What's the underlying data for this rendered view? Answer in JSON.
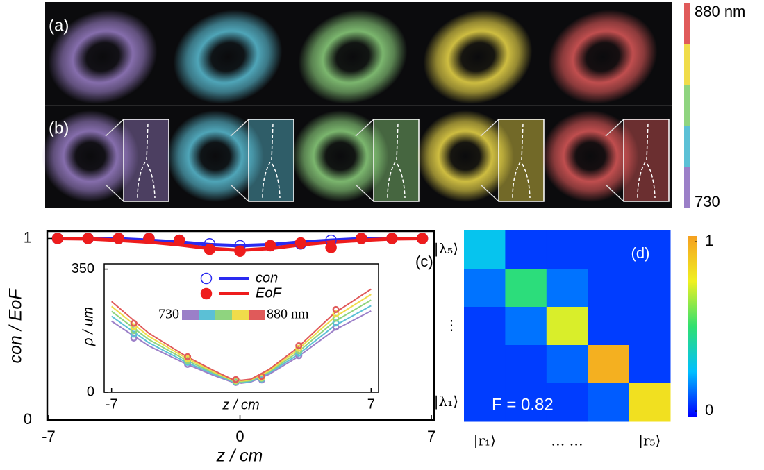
{
  "panels": {
    "a_label": "(a)",
    "b_label": "(b)"
  },
  "wavelength_bar": {
    "top_label": "880 nm",
    "bottom_label": "730",
    "colors": [
      "#e05a5a",
      "#f0dc4a",
      "#8fd47f",
      "#5bc0d6",
      "#9b7fc8"
    ]
  },
  "chart_data": [
    {
      "type": "line",
      "panel_label": "(c)",
      "x_label": "z / cm",
      "y_label": "con / EoF",
      "x": [
        -6.67,
        -5.56,
        -4.44,
        -3.33,
        -2.22,
        -1.11,
        0,
        1.11,
        2.22,
        3.33,
        4.44,
        5.56,
        6.67
      ],
      "xlim": [
        -7.05,
        7.1
      ],
      "ylim": [
        0,
        1.04
      ],
      "xticks": [
        -7,
        0,
        7
      ],
      "yticks": [
        0,
        1
      ],
      "series": [
        {
          "name": "con",
          "color": "#2a2af0",
          "marker": "open-circle",
          "values": [
            1,
            1,
            1,
            1,
            0.99,
            0.97,
            0.96,
            0.96,
            0.97,
            0.99,
            1,
            1,
            1
          ],
          "fit": [
            1,
            1,
            0.998,
            0.99,
            0.98,
            0.966,
            0.96,
            0.966,
            0.98,
            0.99,
            0.998,
            1,
            1
          ]
        },
        {
          "name": "EoF",
          "color": "#ee1c1c",
          "marker": "filled-circle",
          "values": [
            1,
            1,
            1,
            1,
            0.99,
            0.94,
            0.93,
            0.96,
            0.975,
            0.95,
            1,
            1,
            1
          ],
          "fit": [
            1,
            0.998,
            0.99,
            0.98,
            0.965,
            0.945,
            0.935,
            0.945,
            0.965,
            0.98,
            0.99,
            0.998,
            1
          ]
        }
      ]
    },
    {
      "type": "line",
      "x_label": "z / cm",
      "y_label": "ρ / um",
      "xlim": [
        -7.4,
        7.4
      ],
      "ylim": [
        0,
        365
      ],
      "xticks": [
        -7,
        7
      ],
      "yticks": [
        0,
        350
      ],
      "x": [
        -5.8,
        -2.9,
        -0.3,
        1.1,
        3.1,
        5.1
      ],
      "fit_x": [
        -7,
        -5,
        -3,
        -1.5,
        -0.5,
        0,
        0.5,
        1.5,
        3,
        5,
        7
      ],
      "colorbar": {
        "low_label": "730",
        "high_label": "880 nm"
      },
      "series": [
        {
          "color": "#9b7fc8",
          "values": [
            154,
            79,
            28,
            35,
            104,
            185
          ],
          "fit": [
            202,
            132,
            81,
            48,
            29,
            26,
            29,
            51,
            99,
            176,
            231
          ]
        },
        {
          "color": "#5bc0d6",
          "values": [
            165,
            85,
            30,
            38,
            111,
            197
          ],
          "fit": [
            216,
            141,
            86,
            52,
            31,
            28,
            31,
            55,
            105,
            188,
            246
          ]
        },
        {
          "color": "#8fd47f",
          "values": [
            175,
            90,
            32,
            40,
            118,
            210
          ],
          "fit": [
            230,
            150,
            92,
            55,
            33,
            30,
            33,
            58,
            112,
            200,
            262
          ]
        },
        {
          "color": "#f0dc4a",
          "values": [
            186,
            95,
            34,
            42,
            125,
            223
          ],
          "fit": [
            244,
            159,
            98,
            58,
            35,
            32,
            35,
            61,
            119,
            212,
            278
          ]
        },
        {
          "color": "#e05a5a",
          "values": [
            196,
            101,
            36,
            45,
            132,
            235
          ],
          "fit": [
            258,
            168,
            103,
            62,
            37,
            34,
            37,
            65,
            125,
            224,
            293
          ]
        }
      ]
    },
    {
      "type": "heatmap",
      "panel_label": "(d)",
      "annotation": "F = 0.82",
      "row_labels": [
        "|λ₅⟩",
        null,
        "⋮",
        null,
        "|λ₁⟩"
      ],
      "col_labels": [
        "|r₁⟩",
        null,
        "… …",
        null,
        "|r₅⟩"
      ],
      "values": [
        [
          0.28,
          0.08,
          0.08,
          0.08,
          0.08
        ],
        [
          0.15,
          0.48,
          0.15,
          0.08,
          0.08
        ],
        [
          0.08,
          0.15,
          0.72,
          0.08,
          0.08
        ],
        [
          0.08,
          0.08,
          0.13,
          0.95,
          0.08
        ],
        [
          0.08,
          0.08,
          0.08,
          0.12,
          0.8
        ]
      ],
      "zlim": [
        0,
        1
      ],
      "zticks": [
        0,
        1
      ],
      "colormap": [
        "#0000ff",
        "#00c0ff",
        "#30e070",
        "#f0f020",
        "#f5a020"
      ]
    }
  ]
}
